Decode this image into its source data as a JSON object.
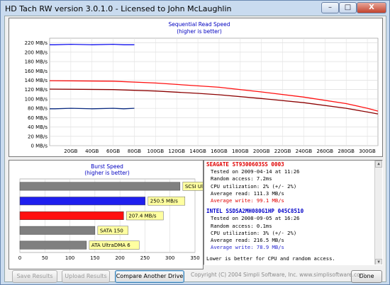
{
  "window": {
    "title": "HD Tach RW version 3.0.1.0 - Licensed to John McLaughlin",
    "controls": {
      "minimize": "–",
      "maximize": "□",
      "close": "X"
    }
  },
  "seq_chart": {
    "title": "Sequential Read Speed",
    "subtitle": "(higher is better)"
  },
  "burst_chart": {
    "title": "Burst Speed",
    "subtitle": "(higher is better)"
  },
  "chart_data": [
    {
      "type": "line",
      "title": "Sequential Read Speed",
      "subtitle": "(higher is better)",
      "y_ticks": [
        "220 MB/s",
        "200 MB/s",
        "180 MB/s",
        "160 MB/s",
        "140 MB/s",
        "120 MB/s",
        "100 MB/s",
        "80 MB/s",
        "60 MB/s",
        "40 MB/s",
        "20 MB/s",
        "0 MB/s"
      ],
      "x_ticks": [
        "20GB",
        "40GB",
        "60GB",
        "80GB",
        "100GB",
        "120GB",
        "140GB",
        "160GB",
        "180GB",
        "200GB",
        "220GB",
        "240GB",
        "260GB",
        "280GB",
        "300GB"
      ],
      "ylim": [
        0,
        230
      ],
      "xlim": [
        0,
        310
      ],
      "grid": true,
      "series": [
        {
          "name": "SEAGATE ST9300603SS 0003",
          "color": "#ff1010",
          "kind": "read",
          "x": [
            0,
            60,
            100,
            140,
            160,
            200,
            240,
            280,
            300,
            310
          ],
          "y": [
            139,
            138,
            134,
            128,
            125,
            115,
            104,
            90,
            80,
            74
          ]
        },
        {
          "name": "SEAGATE ST9300603SS 0003",
          "color": "#8b0000",
          "kind": "write",
          "x": [
            0,
            60,
            100,
            140,
            160,
            200,
            240,
            280,
            300,
            310
          ],
          "y": [
            121,
            120,
            117,
            112,
            109,
            101,
            92,
            80,
            72,
            68
          ]
        },
        {
          "name": "INTEL SSDSA2MH080G1HP 045C8510",
          "color": "#1010ee",
          "kind": "read",
          "x": [
            0,
            5,
            20,
            40,
            60,
            70,
            80
          ],
          "y": [
            216,
            216,
            217,
            216,
            217,
            216,
            216
          ]
        },
        {
          "name": "INTEL SSDSA2MH080G1HP 045C8510",
          "color": "#0a2a80",
          "kind": "write",
          "x": [
            0,
            5,
            20,
            40,
            60,
            70,
            80
          ],
          "y": [
            79,
            79,
            80,
            79,
            80,
            79,
            80
          ]
        }
      ]
    },
    {
      "type": "bar",
      "title": "Burst Speed",
      "subtitle": "(higher is better)",
      "x_ticks": [
        "0",
        "50",
        "100",
        "150",
        "200",
        "250",
        "300",
        "350"
      ],
      "xlim": [
        0,
        350
      ],
      "grid": true,
      "bars": [
        {
          "label": "SCSI Ultra320",
          "value": 320,
          "color": "#808080"
        },
        {
          "label": "250.5 MB/s",
          "value": 250.5,
          "color": "#1f1fee"
        },
        {
          "label": "207.4 MB/s",
          "value": 207.4,
          "color": "#ff1010"
        },
        {
          "label": "SATA 150",
          "value": 150,
          "color": "#808080"
        },
        {
          "label": "ATA UltraDMA 6",
          "value": 133,
          "color": "#808080"
        }
      ]
    }
  ],
  "info": {
    "drive1": {
      "name": "SEAGATE ST9300603SS 0003",
      "tested": "Tested on 2009-04-14 at 11:26",
      "random": "Random access: 7.2ms",
      "cpu": "CPU utilization: 2% (+/- 2%)",
      "read": "Average read: 111.3 MB/s",
      "write": "Average write: 99.1 MB/s"
    },
    "drive2": {
      "name": "INTEL SSDSA2MH080G1HP 045C8510",
      "tested": "Tested on 2008-09-05 at 16:26",
      "random": "Random access: 0.1ms",
      "cpu": "CPU utilization: 3% (+/- 2%)",
      "read": "Average read: 216.5 MB/s",
      "write": "Average write: 78.9 MB/s"
    },
    "note": "Lower is better for CPU and random access."
  },
  "buttons": {
    "save": "Save Results",
    "upload": "Upload Results",
    "compare": "Compare Another Drive",
    "done": "Done"
  },
  "copyright": "Copyright (C) 2004 Simpli Software, Inc. www.simplisoftware.com"
}
